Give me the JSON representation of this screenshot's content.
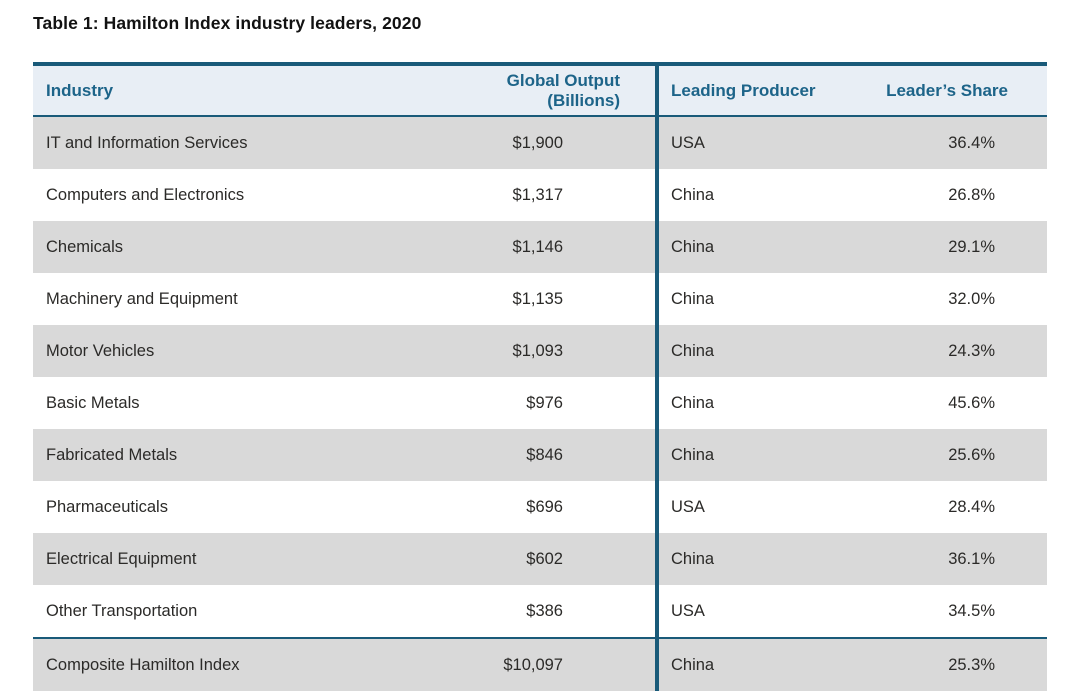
{
  "title": "Table 1: Hamilton Index industry leaders, 2020",
  "colors": {
    "accent_blue": "#195a79",
    "header_bg": "#e8eef5",
    "header_text": "#1d6489",
    "alt_row_bg": "#d9d9d9",
    "body_text": "#2b2a28"
  },
  "table": {
    "columns": {
      "industry": "Industry",
      "output": "Global Output (Billions)",
      "producer": "Leading Producer",
      "share": "Leader’s Share"
    },
    "rows": [
      {
        "industry": "IT and Information Services",
        "output": "$1,900",
        "producer": "USA",
        "share": "36.4%"
      },
      {
        "industry": "Computers and Electronics",
        "output": "$1,317",
        "producer": "China",
        "share": "26.8%"
      },
      {
        "industry": "Chemicals",
        "output": "$1,146",
        "producer": "China",
        "share": "29.1%"
      },
      {
        "industry": "Machinery and Equipment",
        "output": "$1,135",
        "producer": "China",
        "share": "32.0%"
      },
      {
        "industry": "Motor Vehicles",
        "output": "$1,093",
        "producer": "China",
        "share": "24.3%"
      },
      {
        "industry": "Basic Metals",
        "output": "$976",
        "producer": "China",
        "share": "45.6%"
      },
      {
        "industry": "Fabricated Metals",
        "output": "$846",
        "producer": "China",
        "share": "25.6%"
      },
      {
        "industry": "Pharmaceuticals",
        "output": "$696",
        "producer": "USA",
        "share": "28.4%"
      },
      {
        "industry": "Electrical Equipment",
        "output": "$602",
        "producer": "China",
        "share": "36.1%"
      },
      {
        "industry": "Other Transportation",
        "output": "$386",
        "producer": "USA",
        "share": "34.5%"
      }
    ],
    "footer": {
      "industry": "Composite Hamilton Index",
      "output": "$10,097",
      "producer": "China",
      "share": "25.3%"
    }
  }
}
